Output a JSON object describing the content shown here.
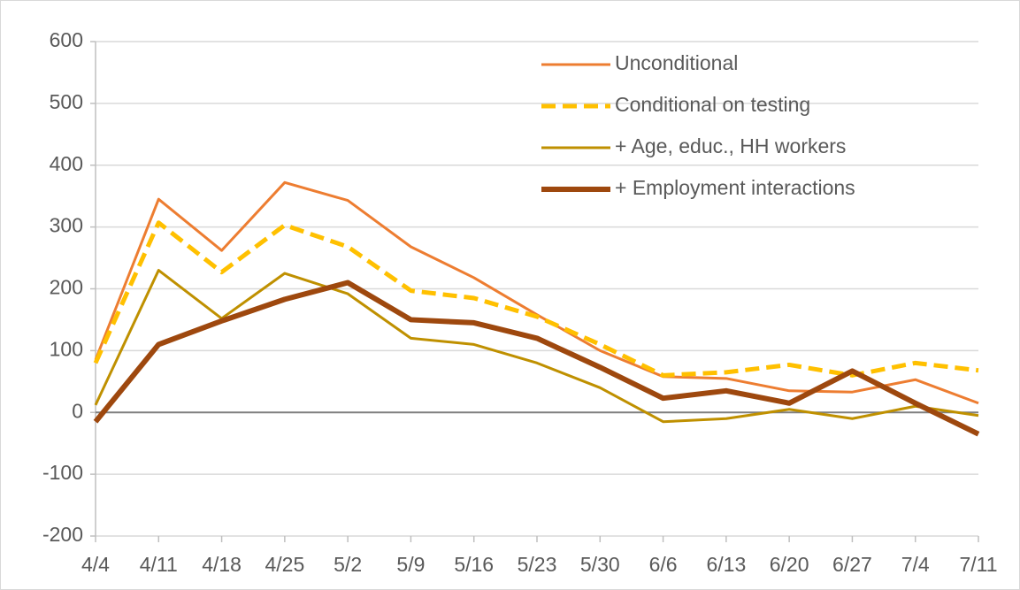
{
  "chart_data": {
    "type": "line",
    "categories": [
      "4/4",
      "4/11",
      "4/18",
      "4/25",
      "5/2",
      "5/9",
      "5/16",
      "5/23",
      "5/30",
      "6/6",
      "6/13",
      "6/20",
      "6/27",
      "7/4",
      "7/11"
    ],
    "series": [
      {
        "name": "Unconditional",
        "color": "#ed7d31",
        "width": 3,
        "dash": false,
        "values": [
          85,
          345,
          262,
          372,
          343,
          268,
          218,
          158,
          100,
          58,
          55,
          35,
          33,
          53,
          15
        ]
      },
      {
        "name": "Conditional on testing",
        "color": "#ffc000",
        "width": 5,
        "dash": true,
        "values": [
          80,
          307,
          227,
          303,
          268,
          197,
          185,
          155,
          110,
          60,
          65,
          77,
          60,
          80,
          68
        ]
      },
      {
        "name": "+ Age, educ., HH workers",
        "color": "#bf9000",
        "width": 3,
        "dash": false,
        "values": [
          12,
          230,
          152,
          225,
          192,
          120,
          110,
          80,
          40,
          -15,
          -10,
          5,
          -10,
          10,
          -5
        ]
      },
      {
        "name": "+ Employment interactions",
        "color": "#9e480e",
        "width": 6,
        "dash": false,
        "values": [
          -15,
          110,
          148,
          183,
          210,
          150,
          145,
          120,
          73,
          23,
          35,
          15,
          67,
          15,
          -35
        ]
      }
    ],
    "ylim": [
      -200,
      600
    ],
    "yticks": [
      -200,
      -100,
      0,
      100,
      200,
      300,
      400,
      500,
      600
    ],
    "grid": true,
    "legend": "top-right"
  }
}
